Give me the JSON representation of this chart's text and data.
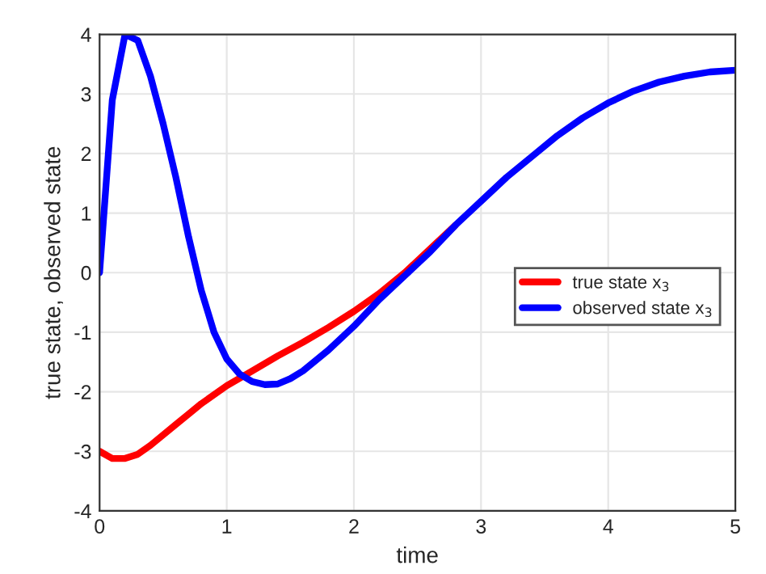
{
  "chart_data": {
    "type": "line",
    "xlabel": "time",
    "ylabel": "true state, observed state",
    "xlim": [
      0,
      5
    ],
    "xticks": [
      0,
      1,
      2,
      3,
      4,
      5
    ],
    "ylim": [
      -4,
      4
    ],
    "yticks": [
      -4,
      -3,
      -2,
      -1,
      0,
      1,
      2,
      3,
      4
    ],
    "grid": true,
    "legend": "right",
    "series": [
      {
        "name": "true state x$_{3}$",
        "color": "#ff0000",
        "x": [
          0,
          0.1,
          0.2,
          0.3,
          0.4,
          0.6,
          0.8,
          1.0,
          1.2,
          1.4,
          1.6,
          1.8,
          2.0,
          2.2,
          2.4,
          2.6,
          2.8
        ],
        "values": [
          -3.0,
          -3.12,
          -3.12,
          -3.05,
          -2.9,
          -2.55,
          -2.2,
          -1.9,
          -1.65,
          -1.4,
          -1.17,
          -0.92,
          -0.65,
          -0.35,
          0.0,
          0.4,
          0.8
        ]
      },
      {
        "name": "observed state x$_{3}$",
        "color": "#0000ff",
        "x": [
          0,
          0.1,
          0.2,
          0.3,
          0.4,
          0.5,
          0.6,
          0.7,
          0.8,
          0.9,
          1.0,
          1.1,
          1.2,
          1.3,
          1.4,
          1.5,
          1.6,
          1.8,
          2.0,
          2.2,
          2.4,
          2.6,
          2.8,
          3.0,
          3.2,
          3.4,
          3.6,
          3.8,
          4.0,
          4.2,
          4.4,
          4.6,
          4.8,
          5.0
        ],
        "values": [
          0.0,
          2.9,
          4.0,
          3.9,
          3.3,
          2.5,
          1.6,
          0.6,
          -0.3,
          -1.0,
          -1.45,
          -1.7,
          -1.83,
          -1.88,
          -1.87,
          -1.78,
          -1.65,
          -1.3,
          -0.9,
          -0.45,
          -0.05,
          0.35,
          0.8,
          1.2,
          1.6,
          1.95,
          2.3,
          2.6,
          2.85,
          3.05,
          3.2,
          3.3,
          3.37,
          3.4
        ]
      }
    ]
  }
}
